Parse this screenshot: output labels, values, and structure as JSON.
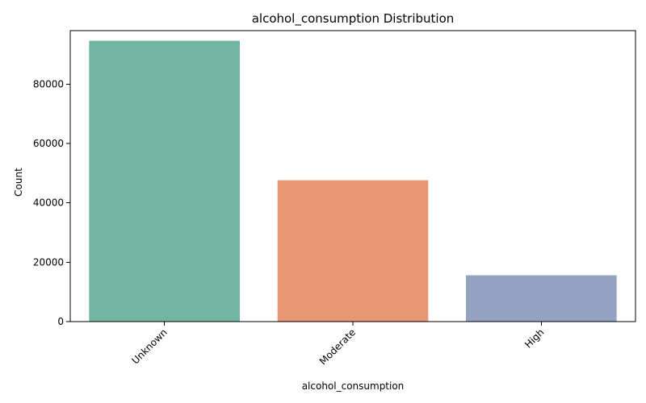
{
  "chart_data": {
    "type": "bar",
    "title": "alcohol_consumption Distribution",
    "xlabel": "alcohol_consumption",
    "ylabel": "Count",
    "categories": [
      "Unknown",
      "Moderate",
      "High"
    ],
    "values": [
      94600,
      47600,
      15600
    ],
    "colors": [
      "#72b6a1",
      "#e99675",
      "#95a3c3"
    ],
    "ylim": [
      0,
      98000
    ],
    "yticks": [
      0,
      20000,
      40000,
      60000,
      80000
    ],
    "ytick_labels": [
      "0",
      "20000",
      "40000",
      "60000",
      "80000"
    ],
    "grid": false,
    "legend": "none"
  }
}
